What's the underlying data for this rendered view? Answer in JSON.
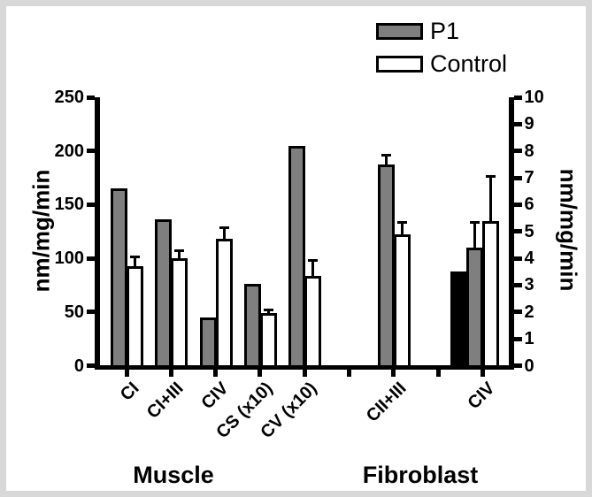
{
  "chart_data": {
    "type": "bar",
    "title": "",
    "legend": [
      {
        "name": "P1",
        "color": "#7f7f7f"
      },
      {
        "name": "Control",
        "color": "#ffffff"
      }
    ],
    "left_axis": {
      "label": "nm/mg/min",
      "min": 0,
      "max": 250,
      "ticks": [
        0,
        50,
        100,
        150,
        200,
        250
      ]
    },
    "right_axis": {
      "label": "nm/mg/min",
      "min": 0,
      "max": 10,
      "ticks": [
        0,
        1,
        2,
        3,
        4,
        5,
        6,
        7,
        8,
        9,
        10
      ]
    },
    "sections": [
      {
        "label": "Muscle"
      },
      {
        "label": "Fibroblast"
      }
    ],
    "groups": [
      {
        "section": "Muscle",
        "label": "CI",
        "axis": "left",
        "bars": [
          {
            "series": "P1",
            "value": 165,
            "error": 0
          },
          {
            "series": "Control",
            "value": 93,
            "error": 10
          }
        ]
      },
      {
        "section": "Muscle",
        "label": "CI+III",
        "axis": "left",
        "bars": [
          {
            "series": "P1",
            "value": 136,
            "error": 0
          },
          {
            "series": "Control",
            "value": 100,
            "error": 8
          }
        ]
      },
      {
        "section": "Muscle",
        "label": "CIV",
        "axis": "left",
        "bars": [
          {
            "series": "P1",
            "value": 45,
            "error": 0
          },
          {
            "series": "Control",
            "value": 118,
            "error": 12
          }
        ]
      },
      {
        "section": "Muscle",
        "label": "CS (x10)",
        "axis": "left",
        "bars": [
          {
            "series": "P1",
            "value": 76,
            "error": 0
          },
          {
            "series": "Control",
            "value": 49,
            "error": 4
          }
        ]
      },
      {
        "section": "Muscle",
        "label": "CV (x10)",
        "axis": "left",
        "bars": [
          {
            "series": "P1",
            "value": 205,
            "error": 0
          },
          {
            "series": "Control",
            "value": 84,
            "error": 15
          }
        ]
      },
      {
        "section": "Fibroblast",
        "label": "CII+III",
        "axis": "right",
        "bars": [
          {
            "series": "P1",
            "value": 7.5,
            "error": 0.4
          },
          {
            "series": "Control",
            "value": 4.9,
            "error": 0.5
          }
        ]
      },
      {
        "section": "Fibroblast",
        "label": "CIV",
        "axis": "right",
        "bars": [
          {
            "series": "",
            "color": "#000000",
            "value": 3.5,
            "error": 0
          },
          {
            "series": "P1",
            "value": 4.4,
            "error": 1.0
          },
          {
            "series": "Control",
            "value": 5.4,
            "error": 1.7
          }
        ]
      }
    ]
  }
}
